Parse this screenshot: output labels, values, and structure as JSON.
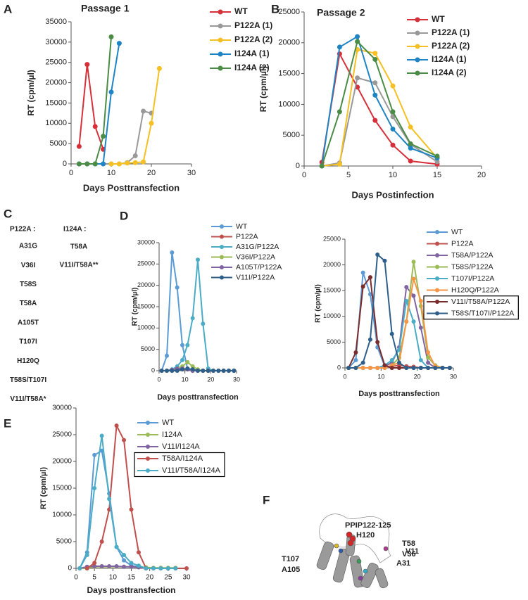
{
  "chart_data": [
    {
      "type": "line",
      "panel": "A",
      "title": "Passage 1",
      "x_label": "Days Posttransfection",
      "y_label": "RT (cpm/µl)",
      "xlim": [
        0,
        30
      ],
      "xticks": [
        0,
        10,
        20,
        30
      ],
      "ylim": [
        0,
        35000
      ],
      "yticks": [
        0,
        5000,
        10000,
        15000,
        20000,
        25000,
        30000,
        35000
      ],
      "series": [
        {
          "name": "WT",
          "color": "#d6303a",
          "x": [
            2,
            4,
            6,
            8
          ],
          "values": [
            4300,
            24500,
            9200,
            3600
          ]
        },
        {
          "name": "P122A (1)",
          "color": "#999999",
          "x": [
            2,
            4,
            6,
            8,
            10,
            12,
            14,
            16,
            18,
            20
          ],
          "values": [
            0,
            0,
            0,
            0,
            0,
            0,
            300,
            2000,
            13000,
            12500
          ]
        },
        {
          "name": "P122A (2)",
          "color": "#f5c023",
          "x": [
            10,
            12,
            14,
            16,
            18,
            20,
            22
          ],
          "values": [
            0,
            0,
            200,
            300,
            500,
            10000,
            23500
          ]
        },
        {
          "name": "I124A (1)",
          "color": "#1e84c4",
          "x": [
            2,
            4,
            6,
            8,
            10,
            12
          ],
          "values": [
            0,
            0,
            0,
            0,
            17700,
            29700
          ]
        },
        {
          "name": "I124A (2)",
          "color": "#4a8c45",
          "x": [
            2,
            4,
            6,
            8,
            10
          ],
          "values": [
            0,
            0,
            0,
            6800,
            31300
          ]
        }
      ]
    },
    {
      "type": "line",
      "panel": "B",
      "title": "Passage 2",
      "x_label": "Days Postinfection",
      "y_label": "RT (cpm/µl)",
      "xlim": [
        0,
        20
      ],
      "xticks": [
        0,
        5,
        10,
        15,
        20
      ],
      "ylim": [
        0,
        25000
      ],
      "yticks": [
        0,
        5000,
        10000,
        15000,
        20000,
        25000
      ],
      "series": [
        {
          "name": "WT",
          "color": "#d6303a",
          "x": [
            2,
            4,
            6,
            8,
            10,
            12,
            15
          ],
          "values": [
            600,
            18200,
            12800,
            7400,
            3400,
            800,
            300
          ]
        },
        {
          "name": "P122A (1)",
          "color": "#999999",
          "x": [
            2,
            4,
            6,
            8,
            10,
            12,
            15
          ],
          "values": [
            0,
            500,
            14300,
            13500,
            8000,
            3500,
            700
          ]
        },
        {
          "name": "P122A (2)",
          "color": "#f5c023",
          "x": [
            2,
            4,
            6,
            8,
            10,
            12,
            15
          ],
          "values": [
            0,
            300,
            18900,
            18300,
            13000,
            6300,
            1300
          ]
        },
        {
          "name": "I124A (1)",
          "color": "#1e84c4",
          "x": [
            2,
            4,
            6,
            8,
            10,
            12,
            15
          ],
          "values": [
            0,
            19300,
            21000,
            11500,
            6000,
            2900,
            1300
          ]
        },
        {
          "name": "I124A (2)",
          "color": "#4a8c45",
          "x": [
            2,
            4,
            6,
            8,
            10,
            12,
            15
          ],
          "values": [
            0,
            8800,
            20200,
            17300,
            8800,
            3600,
            1600
          ]
        }
      ]
    },
    {
      "type": "line",
      "panel": "D",
      "x_label": "Days posttransfection",
      "y_label": "RT (cpm/µl)",
      "xlim": [
        0,
        30
      ],
      "xticks": [
        0,
        10,
        20,
        30
      ],
      "ylim": [
        0,
        30000
      ],
      "yticks": [
        0,
        5000,
        10000,
        15000,
        20000,
        25000,
        30000
      ],
      "series": [
        {
          "name": "WT",
          "color": "#5b9bd5",
          "x": [
            1,
            3,
            5,
            7,
            9,
            11,
            13,
            15,
            17,
            19,
            21,
            23,
            25,
            27,
            29
          ],
          "values": [
            0,
            3500,
            27700,
            19500,
            6000,
            500,
            0,
            0,
            0,
            0,
            0,
            0,
            0,
            0,
            0
          ]
        },
        {
          "name": "P122A",
          "color": "#c0504d",
          "x": [
            1,
            3,
            5,
            7,
            9,
            11,
            13,
            15,
            17,
            19,
            21,
            23,
            25,
            27,
            29
          ],
          "values": [
            0,
            0,
            0,
            200,
            300,
            300,
            200,
            100,
            0,
            0,
            0,
            0,
            0,
            0,
            0
          ]
        },
        {
          "name": "A31G/P122A",
          "color": "#4bacc6",
          "x": [
            1,
            3,
            5,
            7,
            9,
            11,
            13,
            15,
            17,
            19,
            21,
            23,
            25,
            27,
            29
          ],
          "values": [
            0,
            0,
            300,
            1000,
            2500,
            6000,
            12300,
            26000,
            11000,
            500,
            0,
            0,
            0,
            0,
            0
          ]
        },
        {
          "name": "V36I/P122A",
          "color": "#9bbb59",
          "x": [
            1,
            3,
            5,
            7,
            9,
            11,
            13,
            15,
            17,
            19,
            21,
            23,
            25,
            27,
            29
          ],
          "values": [
            0,
            0,
            0,
            500,
            1000,
            2000,
            1000,
            300,
            0,
            0,
            0,
            0,
            0,
            0,
            0
          ]
        },
        {
          "name": "A105T/P122A",
          "color": "#8064a2",
          "x": [
            1,
            3,
            5,
            7,
            9,
            11,
            13,
            15,
            17,
            19,
            21,
            23,
            25,
            27,
            29
          ],
          "values": [
            0,
            0,
            200,
            500,
            500,
            300,
            0,
            0,
            0,
            0,
            0,
            0,
            0,
            0,
            0
          ]
        },
        {
          "name": "V11I/P122A",
          "color": "#2e5f8a",
          "x": [
            1,
            3,
            5,
            7,
            9,
            11,
            13,
            15,
            17,
            19,
            21,
            23,
            25,
            27,
            29
          ],
          "values": [
            0,
            0,
            0,
            0,
            300,
            500,
            300,
            0,
            0,
            0,
            0,
            0,
            0,
            0,
            0
          ]
        }
      ]
    },
    {
      "type": "line",
      "x_label": "Days posttransfection",
      "y_label": "RT (cpm/µl)",
      "xlim": [
        0,
        30
      ],
      "xticks": [
        0,
        10,
        20,
        30
      ],
      "ylim": [
        0,
        25000
      ],
      "yticks": [
        0,
        5000,
        10000,
        15000,
        20000,
        25000
      ],
      "series": [
        {
          "name": "WT",
          "color": "#5b9bd5",
          "x": [
            1,
            3,
            5,
            7,
            9,
            11,
            13,
            15,
            17,
            19,
            21,
            23,
            25,
            27,
            29
          ],
          "values": [
            0,
            1500,
            18500,
            14300,
            4000,
            300,
            0,
            0,
            0,
            0,
            0,
            0,
            0,
            0,
            0
          ]
        },
        {
          "name": "P122A",
          "color": "#c0504d",
          "x": [
            1,
            3,
            5,
            7,
            9,
            11,
            13,
            15,
            17,
            19,
            21,
            23,
            25,
            27,
            29
          ],
          "values": [
            0,
            0,
            0,
            0,
            0,
            0,
            300,
            500,
            300,
            200,
            0,
            0,
            0,
            0,
            0
          ]
        },
        {
          "name": "T58A/P122A",
          "color": "#8064a2",
          "x": [
            1,
            3,
            5,
            7,
            9,
            11,
            13,
            15,
            17,
            19,
            21,
            23,
            25,
            27,
            29
          ],
          "values": [
            0,
            0,
            0,
            0,
            0,
            300,
            1000,
            4000,
            15700,
            14000,
            7800,
            1000,
            0,
            0,
            0
          ]
        },
        {
          "name": "T58S/P122A",
          "color": "#9bbb59",
          "x": [
            1,
            3,
            5,
            7,
            9,
            11,
            13,
            15,
            17,
            19,
            21,
            23,
            25,
            27,
            29
          ],
          "values": [
            0,
            0,
            0,
            0,
            0,
            0,
            500,
            2000,
            9000,
            20600,
            12000,
            2000,
            500,
            0,
            0
          ]
        },
        {
          "name": "T107I/P122A",
          "color": "#4bacc6",
          "x": [
            1,
            3,
            5,
            7,
            9,
            11,
            13,
            15,
            17,
            19,
            21,
            23,
            25,
            27,
            29
          ],
          "values": [
            0,
            0,
            0,
            0,
            0,
            500,
            1500,
            3500,
            13000,
            9000,
            1500,
            0,
            0,
            0,
            0
          ]
        },
        {
          "name": "H120Q/P122A",
          "color": "#f79646",
          "x": [
            1,
            3,
            5,
            7,
            9,
            11,
            13,
            15,
            17,
            19,
            21,
            23,
            25,
            27,
            29
          ],
          "values": [
            0,
            0,
            0,
            0,
            0,
            0,
            500,
            1000,
            9000,
            17300,
            13000,
            3000,
            300,
            0,
            0
          ]
        },
        {
          "name": "V11I/T58A/P122A",
          "color": "#7b2c2c",
          "boxed": true,
          "x": [
            1,
            3,
            5,
            7,
            9,
            11,
            13,
            15,
            17,
            19,
            21,
            23,
            25,
            27,
            29
          ],
          "values": [
            0,
            3000,
            15800,
            17600,
            5000,
            500,
            0,
            0,
            0,
            0,
            0,
            0,
            0,
            0,
            0
          ]
        },
        {
          "name": "T58S/T107I/P122A",
          "color": "#2e5f8a",
          "boxed": true,
          "x": [
            1,
            3,
            5,
            7,
            9,
            11,
            13,
            15,
            17,
            19,
            21,
            23,
            25,
            27,
            29
          ],
          "values": [
            0,
            0,
            1000,
            5500,
            22000,
            20800,
            6600,
            1000,
            0,
            0,
            0,
            0,
            0,
            0,
            0
          ]
        }
      ]
    },
    {
      "type": "line",
      "panel": "E",
      "x_label": "Days posttransfection",
      "y_label": "RT (cpm/µl)",
      "xlim": [
        0,
        30
      ],
      "xticks": [
        0,
        5,
        10,
        15,
        20,
        25,
        30
      ],
      "ylim": [
        0,
        30000
      ],
      "yticks": [
        0,
        5000,
        10000,
        15000,
        20000,
        25000,
        30000
      ],
      "series": [
        {
          "name": "WT",
          "color": "#5b9bd5",
          "x": [
            1,
            3,
            5,
            7,
            9,
            11,
            13,
            15,
            17,
            19,
            21,
            23,
            25,
            27
          ],
          "values": [
            0,
            3000,
            21200,
            22000,
            14000,
            4000,
            1500,
            500,
            300,
            0,
            0,
            0,
            0,
            0
          ]
        },
        {
          "name": "I124A",
          "color": "#9bbb59",
          "x": [
            1,
            3,
            5,
            7,
            9,
            11,
            13,
            15,
            17,
            19,
            21,
            23,
            25,
            27
          ],
          "values": [
            0,
            0,
            300,
            300,
            300,
            300,
            300,
            300,
            200,
            200,
            100,
            100,
            100,
            100
          ]
        },
        {
          "name": "V11I/I124A",
          "color": "#8064a2",
          "x": [
            1,
            3,
            5,
            7,
            9,
            11,
            13,
            15,
            17,
            19,
            21,
            23,
            25,
            27
          ],
          "values": [
            0,
            300,
            400,
            400,
            400,
            400,
            300,
            300,
            200,
            0,
            0,
            0,
            0,
            0
          ]
        },
        {
          "name": "T58A/I124A",
          "color": "#c0504d",
          "boxed": true,
          "x": [
            3,
            5,
            7,
            9,
            11,
            13,
            15,
            17,
            19,
            30
          ],
          "values": [
            0,
            1000,
            5000,
            11000,
            26700,
            24000,
            11000,
            3000,
            0,
            0
          ]
        },
        {
          "name": "V11I/T58A/I124A",
          "color": "#4bacc6",
          "boxed": true,
          "x": [
            1,
            3,
            5,
            7,
            9,
            11,
            13,
            15,
            17,
            19,
            21,
            23,
            25,
            27
          ],
          "values": [
            0,
            2500,
            15000,
            24800,
            13000,
            4000,
            2500,
            1000,
            500,
            0,
            0,
            0,
            0,
            0
          ]
        }
      ]
    }
  ],
  "panel_c": {
    "letter": "C",
    "groups": [
      {
        "header": "P122A :",
        "items": [
          "A31G",
          "V36I",
          "T58S",
          "T58A",
          "A105T",
          "T107I",
          "H120Q",
          "T58S/T107I",
          "V11I/T58A*"
        ]
      },
      {
        "header": "I124A :",
        "items": [
          "T58A",
          "V11I/T58A**"
        ]
      }
    ]
  },
  "panel_f": {
    "letter": "F",
    "labels": [
      {
        "text": "PPIP122-125",
        "color": "#d62728"
      },
      {
        "text": "H120",
        "color": "#d08a2a"
      },
      {
        "text": "V11",
        "color": "#b03a8c"
      },
      {
        "text": "T107",
        "color": "#d9b820"
      },
      {
        "text": "A105",
        "color": "#2a5db0"
      },
      {
        "text": "T58",
        "color": "#3a9a5a"
      },
      {
        "text": "V36",
        "color": "#30b0c8"
      },
      {
        "text": "A31",
        "color": "#8a3aa0"
      }
    ]
  }
}
